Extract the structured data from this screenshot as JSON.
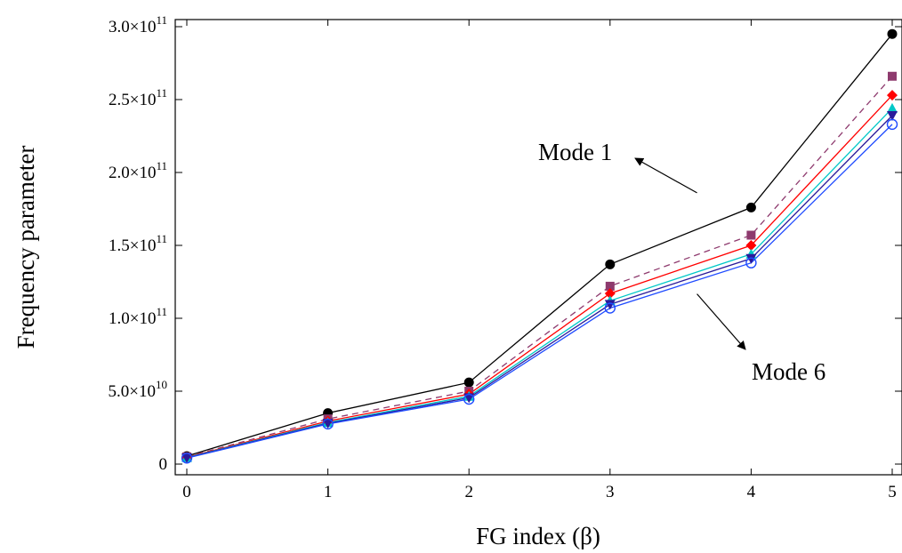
{
  "chart_data": {
    "type": "line",
    "xlabel": "FG index (β)",
    "ylabel": "Frequency parameter",
    "x": [
      0,
      1,
      2,
      3,
      4,
      5
    ],
    "xlim": [
      0,
      5
    ],
    "ylim": [
      0,
      300000000000
    ],
    "x_ticks": [
      "0",
      "1",
      "2",
      "3",
      "4",
      "5"
    ],
    "y_ticks": [
      {
        "value": 0,
        "mantissa": "0",
        "exp": ""
      },
      {
        "value": 50000000000,
        "mantissa": "5.0×10",
        "exp": "10"
      },
      {
        "value": 100000000000,
        "mantissa": "1.0×10",
        "exp": "11"
      },
      {
        "value": 150000000000,
        "mantissa": "1.5×10",
        "exp": "11"
      },
      {
        "value": 200000000000,
        "mantissa": "2.0×10",
        "exp": "11"
      },
      {
        "value": 250000000000,
        "mantissa": "2.5×10",
        "exp": "11"
      },
      {
        "value": 300000000000,
        "mantissa": "3.0×10",
        "exp": "11"
      }
    ],
    "grid": false,
    "series": [
      {
        "color": "#000000",
        "marker": "circle",
        "dash": "solid",
        "values": [
          5500000000,
          35000000000,
          56000000000,
          137000000000,
          176000000000,
          295000000000
        ]
      },
      {
        "color": "#8e3a6e",
        "marker": "square",
        "dash": "dashed",
        "values": [
          5000000000,
          31000000000,
          50000000000,
          122000000000,
          157000000000,
          266000000000
        ]
      },
      {
        "color": "#ff0000",
        "marker": "diamond",
        "dash": "solid",
        "values": [
          4700000000,
          29500000000,
          48000000000,
          117000000000,
          150000000000,
          253000000000
        ]
      },
      {
        "color": "#00c8c8",
        "marker": "triangle-up",
        "dash": "solid",
        "values": [
          4500000000,
          28500000000,
          46500000000,
          112000000000,
          144000000000,
          244000000000
        ]
      },
      {
        "color": "#2a1a9a",
        "marker": "triangle-down",
        "dash": "solid",
        "values": [
          4300000000,
          28000000000,
          45500000000,
          109500000000,
          141000000000,
          239000000000
        ]
      },
      {
        "color": "#1f4bff",
        "marker": "open-circle",
        "dash": "solid",
        "values": [
          4100000000,
          27500000000,
          44500000000,
          107000000000,
          138000000000,
          233000000000
        ]
      }
    ],
    "annotations": [
      {
        "text": "Mode 1",
        "target_x": 3.9,
        "target_y": 183000000000
      },
      {
        "text": "Mode 6",
        "target_x": 3.9,
        "target_y": 135000000000
      }
    ]
  }
}
